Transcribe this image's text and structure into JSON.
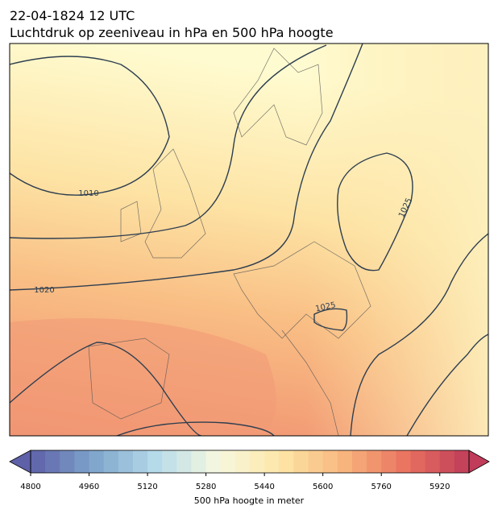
{
  "header": {
    "title": "22-04-1824 12 UTC",
    "subtitle": "Luchtdruk op zeeniveau in hPa en 500 hPa hoogte"
  },
  "map": {
    "contour_labels": [
      "1010",
      "1020",
      "1025",
      "1025"
    ]
  },
  "colorbar": {
    "label": "500 hPa hoogte in meter",
    "range": [
      4800,
      6000
    ],
    "step": 40,
    "ticks": [
      4800,
      4960,
      5120,
      5280,
      5440,
      5600,
      5760,
      5920
    ],
    "colormap": [
      "#5e60a8",
      "#7ea4cc",
      "#b6dbe9",
      "#f7f8e0",
      "#fde6a6",
      "#f8b57e",
      "#e9725f",
      "#c03c5a"
    ]
  }
}
